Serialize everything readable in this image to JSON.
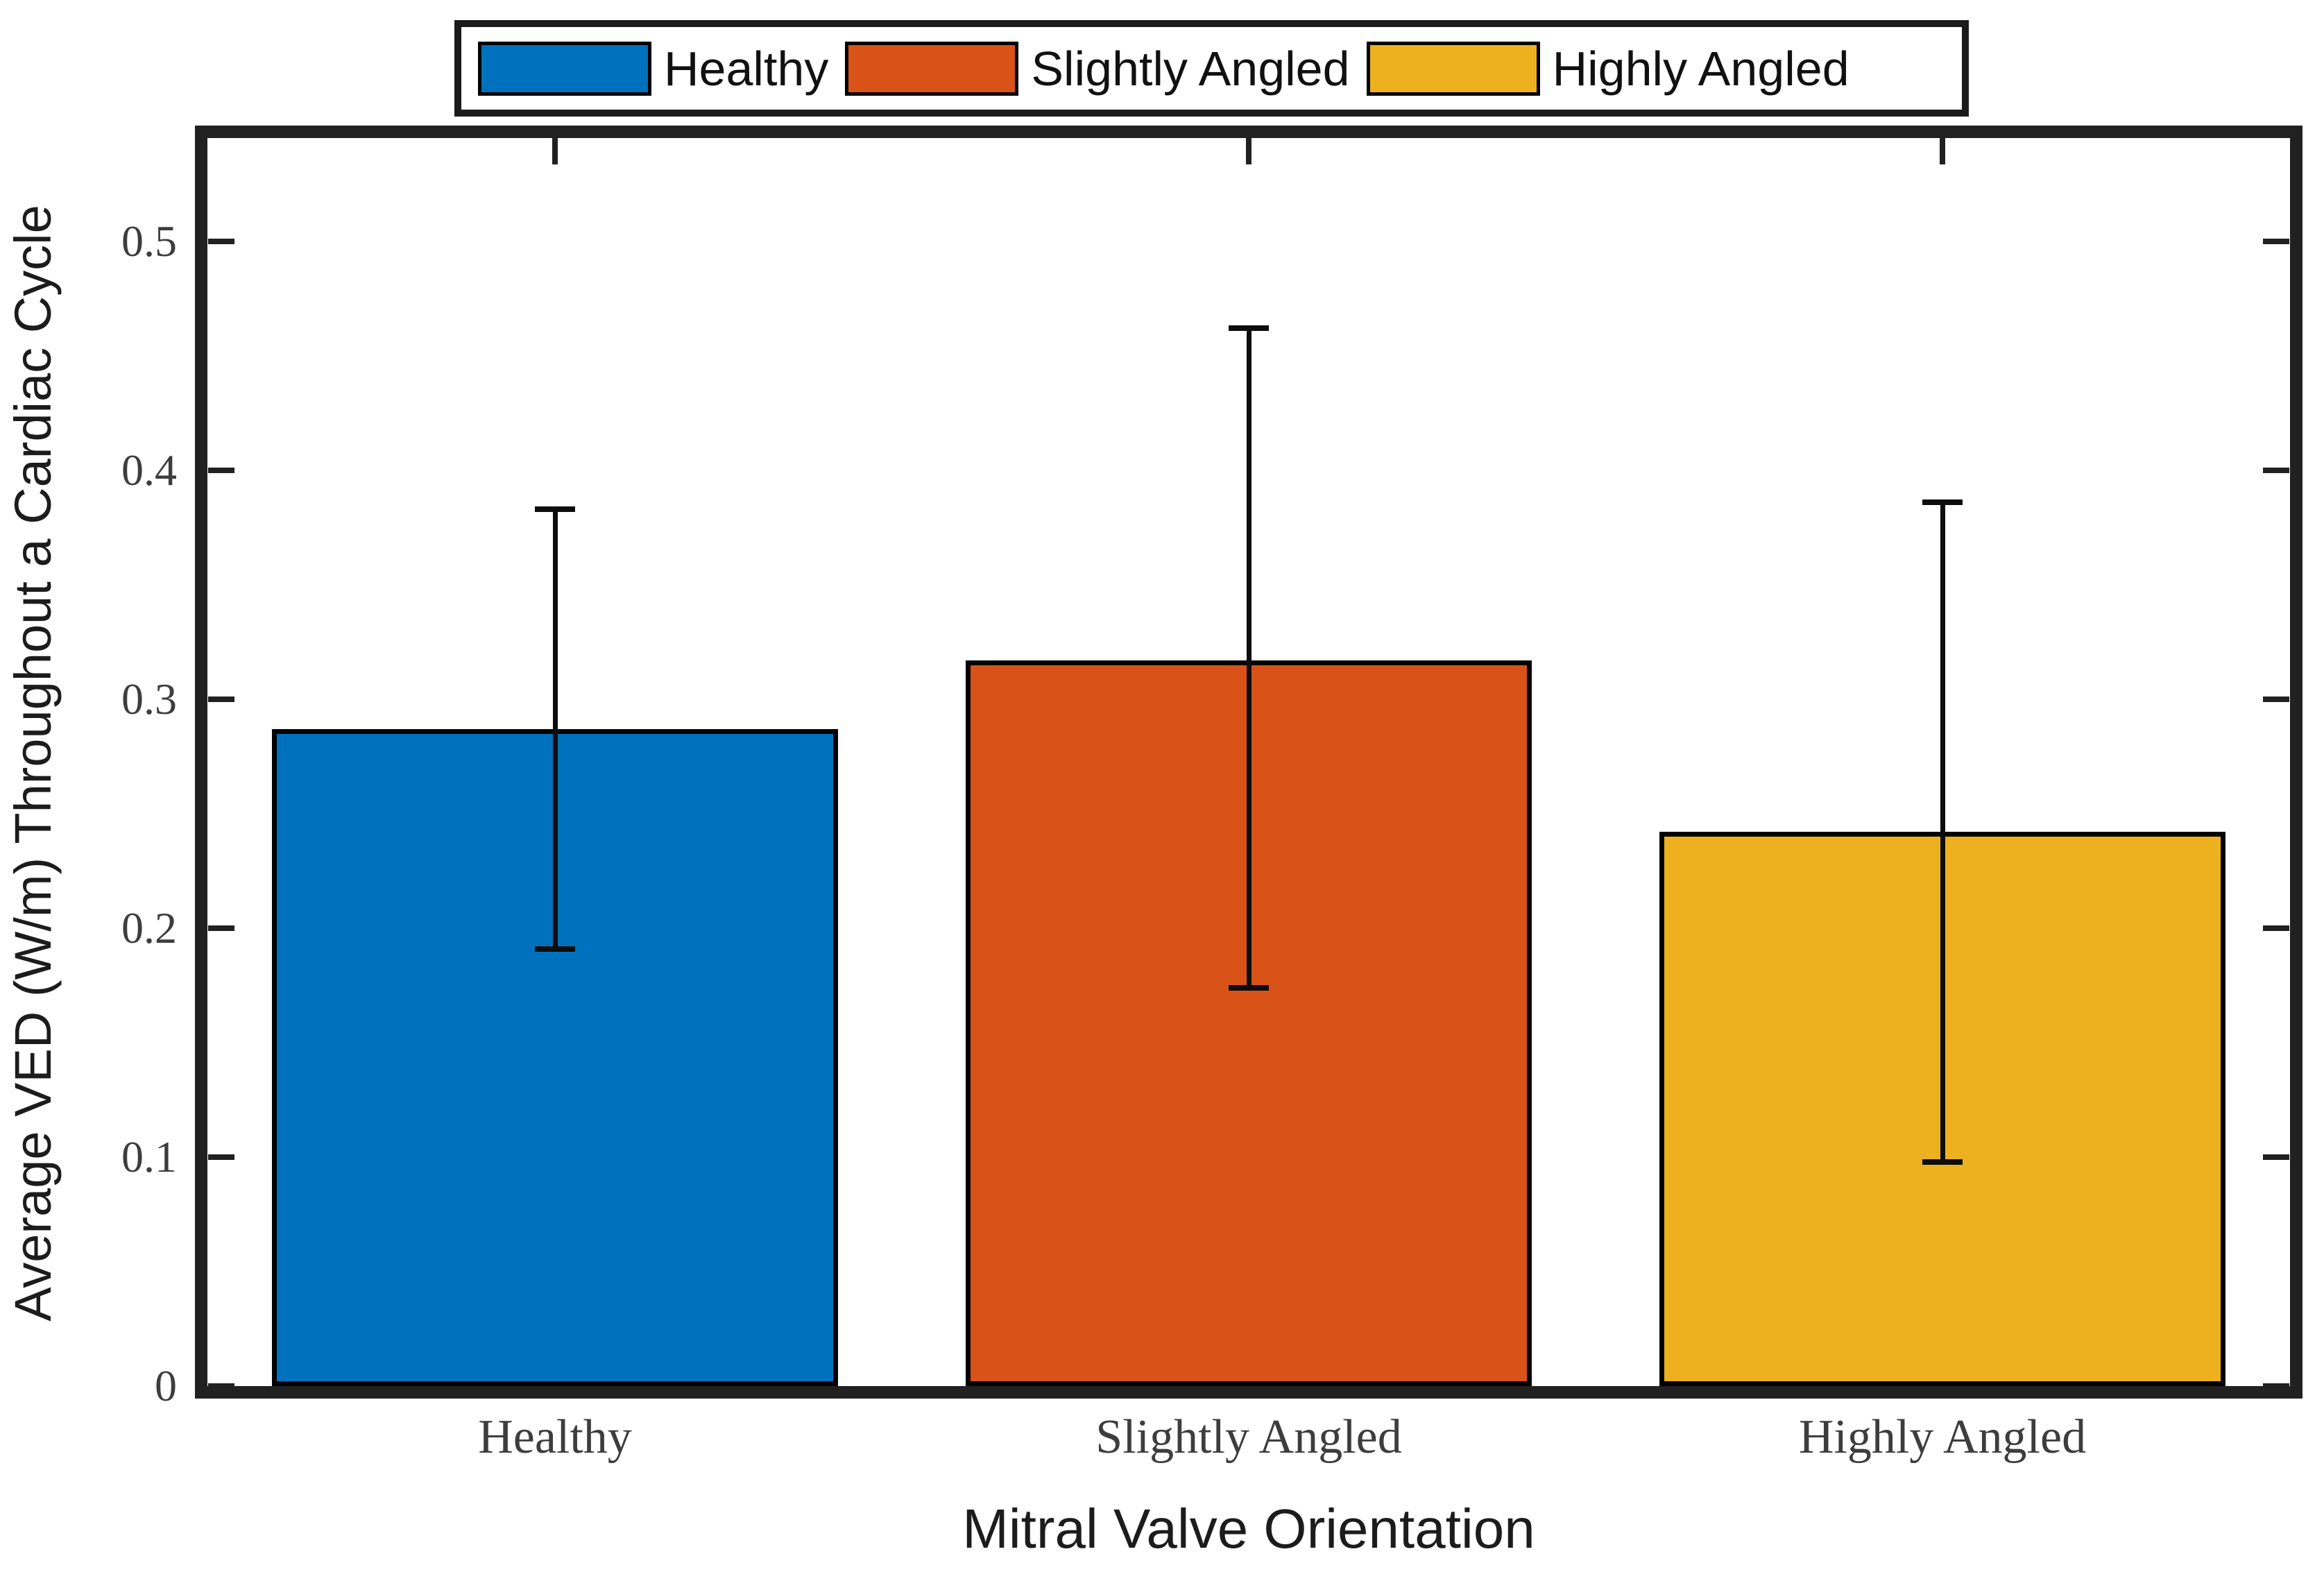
{
  "figure": {
    "background": "#ffffff",
    "axes_color": "#212121",
    "bar_edge_color": "#000000",
    "error_bar_color": "#0d0d0d"
  },
  "chart_data": {
    "type": "bar",
    "title": "",
    "xlabel": "Mitral Valve Orientation",
    "ylabel": "Average VED (W/m) Throughout a Cardiac Cycle",
    "categories": [
      "Healthy",
      "Slightly Angled",
      "Highly Angled"
    ],
    "values": [
      0.287,
      0.317,
      0.242
    ],
    "error_plus": [
      0.096,
      0.145,
      0.144
    ],
    "error_minus": [
      0.096,
      0.143,
      0.144
    ],
    "bar_colors": [
      "#0072BD",
      "#D95319",
      "#EDB120"
    ],
    "ylim": [
      0,
      0.545
    ],
    "yticks": [
      0,
      0.1,
      0.2,
      0.3,
      0.4,
      0.5
    ],
    "ytick_labels": [
      "0",
      "0.1",
      "0.2",
      "0.3",
      "0.4",
      "0.5"
    ],
    "grid": false,
    "legend": {
      "position": "top",
      "entries": [
        {
          "label": "Healthy",
          "color": "#0072BD"
        },
        {
          "label": "Slightly Angled",
          "color": "#D95319"
        },
        {
          "label": "Highly Angled",
          "color": "#EDB120"
        }
      ]
    }
  }
}
